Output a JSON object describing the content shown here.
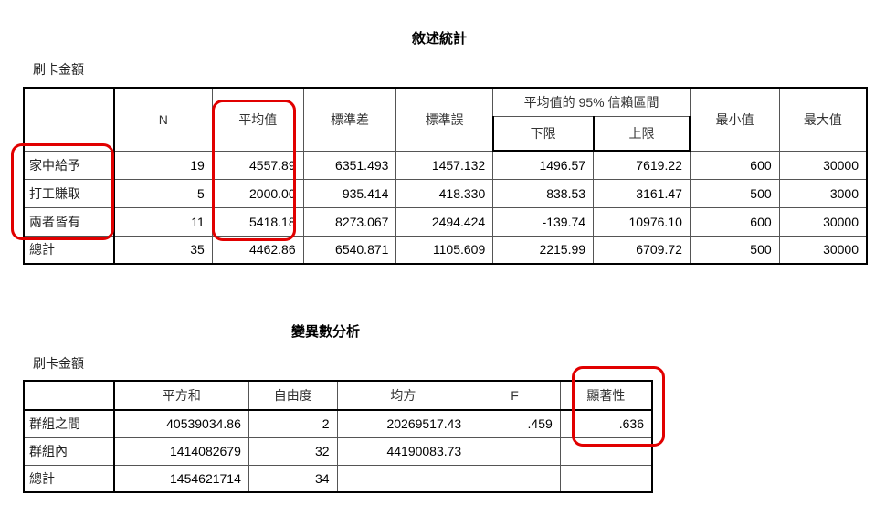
{
  "descriptives": {
    "title": "敘述統計",
    "variable": "刷卡金額",
    "headers": {
      "n": "N",
      "mean": "平均值",
      "std_dev": "標準差",
      "std_err": "標準誤",
      "ci_group": "平均值的 95% 信賴區間",
      "lower": "下限",
      "upper": "上限",
      "min": "最小值",
      "max": "最大值"
    },
    "rows": [
      {
        "label": "家中給予",
        "n": "19",
        "mean": "4557.89",
        "std_dev": "6351.493",
        "std_err": "1457.132",
        "lower": "1496.57",
        "upper": "7619.22",
        "min": "600",
        "max": "30000"
      },
      {
        "label": "打工賺取",
        "n": "5",
        "mean": "2000.00",
        "std_dev": "935.414",
        "std_err": "418.330",
        "lower": "838.53",
        "upper": "3161.47",
        "min": "500",
        "max": "3000"
      },
      {
        "label": "兩者皆有",
        "n": "11",
        "mean": "5418.18",
        "std_dev": "8273.067",
        "std_err": "2494.424",
        "lower": "-139.74",
        "upper": "10976.10",
        "min": "600",
        "max": "30000"
      },
      {
        "label": "總計",
        "n": "35",
        "mean": "4462.86",
        "std_dev": "6540.871",
        "std_err": "1105.609",
        "lower": "2215.99",
        "upper": "6709.72",
        "min": "500",
        "max": "30000"
      }
    ]
  },
  "anova": {
    "title": "變異數分析",
    "variable": "刷卡金額",
    "headers": {
      "ss": "平方和",
      "df": "自由度",
      "ms": "均方",
      "f": "F",
      "sig": "顯著性"
    },
    "rows": [
      {
        "label": "群組之間",
        "ss": "40539034.86",
        "df": "2",
        "ms": "20269517.43",
        "f": ".459",
        "sig": ".636"
      },
      {
        "label": "群組內",
        "ss": "1414082679",
        "df": "32",
        "ms": "44190083.73",
        "f": "",
        "sig": ""
      },
      {
        "label": "總計",
        "ss": "1454621714",
        "df": "34",
        "ms": "",
        "f": "",
        "sig": ""
      }
    ]
  },
  "highlight_color": "#e10000"
}
